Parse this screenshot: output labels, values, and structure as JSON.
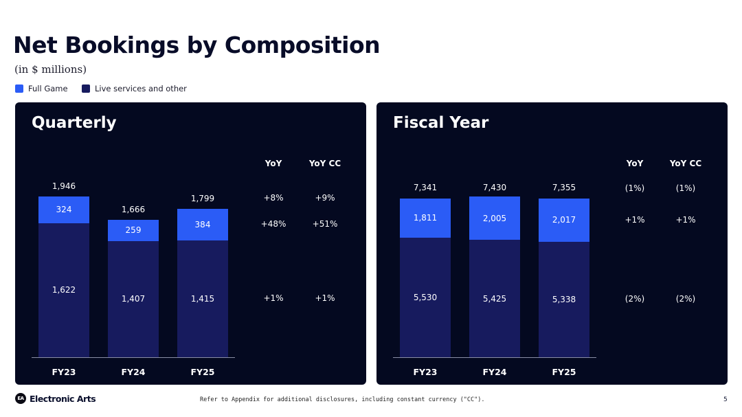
{
  "title": "Net Bookings by Composition",
  "subtitle": "(in $ millions)",
  "colors": {
    "full_game": "#2b5cf6",
    "live_services": "#171b5e",
    "panel": "#040920"
  },
  "legend": [
    {
      "label": "Full Game",
      "color": "#2b5cf6"
    },
    {
      "label": "Live services and other",
      "color": "#171b5e"
    }
  ],
  "chart_data": [
    {
      "type": "bar",
      "stacked": true,
      "title": "Quarterly",
      "categories": [
        "FY23",
        "FY24",
        "FY25"
      ],
      "series": [
        {
          "name": "Full Game",
          "values": [
            324,
            259,
            384
          ]
        },
        {
          "name": "Live services and other",
          "values": [
            1622,
            1407,
            1415
          ]
        }
      ],
      "totals": [
        1946,
        1666,
        1799
      ],
      "table": {
        "headers": [
          "YoY",
          "YoY CC"
        ],
        "rows": {
          "total": [
            "+8%",
            "+9%"
          ],
          "full_game": [
            "+48%",
            "+51%"
          ],
          "live_services": [
            "+1%",
            "+1%"
          ]
        }
      }
    },
    {
      "type": "bar",
      "stacked": true,
      "title": "Fiscal Year",
      "categories": [
        "FY23",
        "FY24",
        "FY25"
      ],
      "series": [
        {
          "name": "Full Game",
          "values": [
            1811,
            2005,
            2017
          ]
        },
        {
          "name": "Live services and other",
          "values": [
            5530,
            5425,
            5338
          ]
        }
      ],
      "totals": [
        7341,
        7430,
        7355
      ],
      "table": {
        "headers": [
          "YoY",
          "YoY CC"
        ],
        "rows": {
          "total": [
            "(1%)",
            "(1%)"
          ],
          "full_game": [
            "+1%",
            "+1%"
          ],
          "live_services": [
            "(2%)",
            "(2%)"
          ]
        }
      }
    }
  ],
  "footer": {
    "brand": "Electronic Arts",
    "logo_text": "EA",
    "note": "Refer to Appendix for additional disclosures, including constant currency (\"CC\").",
    "page": "5"
  }
}
